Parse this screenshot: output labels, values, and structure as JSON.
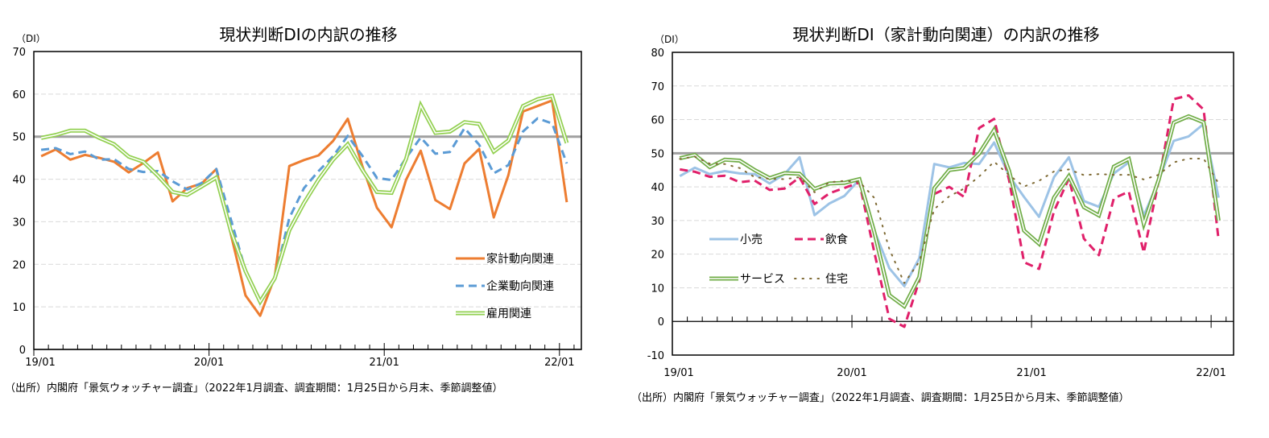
{
  "chart_data": [
    {
      "type": "line",
      "title": "現状判断DIの内訳の推移",
      "unit_label": "（DI）",
      "xlabel": "",
      "ylabel": "DI",
      "ylim": [
        0,
        70
      ],
      "yticks": [
        0,
        10,
        20,
        30,
        40,
        50,
        60,
        70
      ],
      "ytick_labels": [
        "0",
        "10",
        "20",
        "30",
        "40",
        "50",
        "60",
        "70"
      ],
      "xtick_labels": [
        "19/01",
        "20/01",
        "21/01",
        "22/01"
      ],
      "reference_line": 50,
      "grid": true,
      "legend_position": "bottom-right",
      "x": [
        "19/01",
        "19/02",
        "19/03",
        "19/04",
        "19/05",
        "19/06",
        "19/07",
        "19/08",
        "19/09",
        "19/10",
        "19/11",
        "19/12",
        "20/01",
        "20/02",
        "20/03",
        "20/04",
        "20/05",
        "20/06",
        "20/07",
        "20/08",
        "20/09",
        "20/10",
        "20/11",
        "20/12",
        "21/01",
        "21/02",
        "21/03",
        "21/04",
        "21/05",
        "21/06",
        "21/07",
        "21/08",
        "21/09",
        "21/10",
        "21/11",
        "21/12",
        "22/01"
      ],
      "series": [
        {
          "name": "家計動向関連",
          "color": "#ED7D31",
          "style": "solid",
          "values": [
            45.4,
            47.0,
            44.6,
            45.7,
            45.0,
            44.1,
            41.6,
            43.8,
            46.3,
            34.8,
            37.9,
            39.0,
            42.4,
            27.0,
            12.7,
            7.9,
            17.0,
            43.1,
            44.5,
            45.6,
            49.0,
            54.2,
            43.1,
            33.3,
            28.7,
            39.9,
            46.7,
            35.1,
            33.0,
            43.7,
            47.1,
            31.0,
            40.9,
            55.9,
            57.2,
            58.5,
            34.6
          ]
        },
        {
          "name": "企業動向関連",
          "color": "#5B9BD5",
          "style": "dashed",
          "values": [
            46.9,
            47.3,
            45.9,
            46.5,
            44.6,
            44.7,
            42.4,
            41.7,
            41.9,
            39.5,
            37.6,
            39.1,
            42.4,
            30.5,
            18.6,
            11.6,
            16.7,
            30.9,
            37.9,
            41.9,
            45.4,
            50.2,
            45.5,
            40.3,
            39.8,
            45.0,
            49.8,
            46.0,
            46.4,
            52.0,
            48.1,
            41.4,
            43.3,
            51.2,
            54.3,
            53.1,
            43.7
          ]
        },
        {
          "name": "雇用関連",
          "color": "#92D050",
          "style": "double",
          "values": [
            49.7,
            50.4,
            51.4,
            51.4,
            49.7,
            48.2,
            45.3,
            44.1,
            40.8,
            37.0,
            36.3,
            38.3,
            40.4,
            27.8,
            18.4,
            11.2,
            16.7,
            28.0,
            34.4,
            39.9,
            44.6,
            48.2,
            42.2,
            37.0,
            36.8,
            44.8,
            57.3,
            50.9,
            51.2,
            53.4,
            53.0,
            46.5,
            49.1,
            57.2,
            58.8,
            59.6,
            48.5
          ]
        }
      ]
    },
    {
      "type": "line",
      "title": "現状判断DI（家計動向関連）の内訳の推移",
      "unit_label": "（DI）",
      "xlabel": "",
      "ylabel": "DI",
      "ylim": [
        -10,
        80
      ],
      "yticks": [
        -10,
        0,
        10,
        20,
        30,
        40,
        50,
        60,
        70,
        80
      ],
      "ytick_labels": [
        "-10",
        "0",
        "10",
        "20",
        "30",
        "40",
        "50",
        "60",
        "70",
        "80"
      ],
      "xtick_labels": [
        "19/01",
        "20/01",
        "21/01",
        "22/01"
      ],
      "reference_line": 50,
      "grid": true,
      "legend_position": "middle-left",
      "x": [
        "19/01",
        "19/02",
        "19/03",
        "19/04",
        "19/05",
        "19/06",
        "19/07",
        "19/08",
        "19/09",
        "19/10",
        "19/11",
        "19/12",
        "20/01",
        "20/02",
        "20/03",
        "20/04",
        "20/05",
        "20/06",
        "20/07",
        "20/08",
        "20/09",
        "20/10",
        "20/11",
        "20/12",
        "21/01",
        "21/02",
        "21/03",
        "21/04",
        "21/05",
        "21/06",
        "21/07",
        "21/08",
        "21/09",
        "21/10",
        "21/11",
        "21/12",
        "22/01"
      ],
      "series": [
        {
          "name": "小売",
          "color": "#9DC3E6",
          "style": "solid",
          "values": [
            43.2,
            45.7,
            43.8,
            44.7,
            44.0,
            43.8,
            41.0,
            43.8,
            48.8,
            31.6,
            35.1,
            37.3,
            42.2,
            27.0,
            15.8,
            10.5,
            18.8,
            46.8,
            45.8,
            47.1,
            46.8,
            53.2,
            43.3,
            37.0,
            31.1,
            42.9,
            48.8,
            35.8,
            34.1,
            44.0,
            47.3,
            31.4,
            42.0,
            53.7,
            55.0,
            58.7,
            36.8
          ]
        },
        {
          "name": "飲食",
          "color": "#E0206A",
          "style": "dashed",
          "values": [
            45.2,
            44.5,
            43.0,
            43.3,
            41.4,
            41.9,
            39.1,
            39.5,
            42.8,
            34.9,
            38.1,
            39.7,
            41.3,
            20.5,
            0.8,
            -1.6,
            12.1,
            37.9,
            40.0,
            37.0,
            57.5,
            60.2,
            42.0,
            17.6,
            15.6,
            32.8,
            42.5,
            24.6,
            19.7,
            36.6,
            38.6,
            20.5,
            41.8,
            66.1,
            67.2,
            63.0,
            24.2
          ]
        },
        {
          "name": "サービス",
          "color": "#70AD47",
          "style": "double",
          "values": [
            48.5,
            49.5,
            45.9,
            48.1,
            47.8,
            45.0,
            42.6,
            44.1,
            43.9,
            39.4,
            41.0,
            41.2,
            42.3,
            26.5,
            7.8,
            4.5,
            13.2,
            39.6,
            45.0,
            45.6,
            49.9,
            56.9,
            44.8,
            27.0,
            23.1,
            36.8,
            43.2,
            34.0,
            31.5,
            46.0,
            48.3,
            29.0,
            42.2,
            59.1,
            61.0,
            59.2,
            30.0
          ]
        },
        {
          "name": "住宅",
          "color": "#7F6A34",
          "style": "dotted",
          "values": [
            48.3,
            49.0,
            46.9,
            46.8,
            45.6,
            42.9,
            42.4,
            42.3,
            42.9,
            38.4,
            41.4,
            41.8,
            41.5,
            36.7,
            21.5,
            11.4,
            17.8,
            33.4,
            37.2,
            39.5,
            43.1,
            47.5,
            43.5,
            40.1,
            41.8,
            44.6,
            45.2,
            43.5,
            43.8,
            43.6,
            43.6,
            42.2,
            43.6,
            47.3,
            48.4,
            48.4,
            41.0
          ]
        }
      ]
    }
  ],
  "source_note_1": "（出所）内閣府「景気ウォッチャー調査」（2022年1月調査、調査期間：1月25日から月末、季節調整値）",
  "source_note_2": "（出所）内閣府「景気ウォッチャー調査」（2022年1月調査、調査期間：1月25日から月末、季節調整値）"
}
